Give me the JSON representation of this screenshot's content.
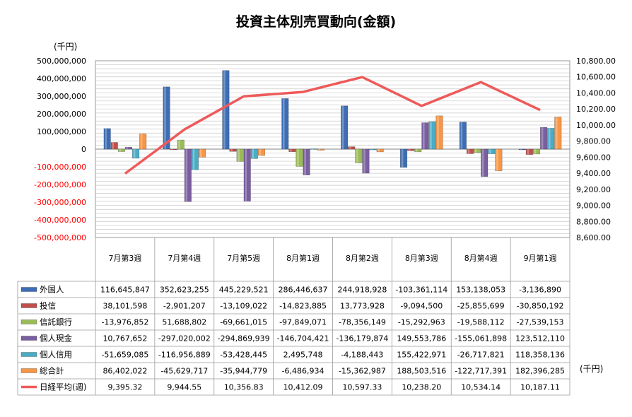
{
  "title": "投資主体別売買動向(金額)",
  "y_unit_left": "(千円)",
  "y_unit_right": "(千円)",
  "colors": {
    "外国人": "#3d6db5",
    "投信": "#c0504d",
    "信託銀行": "#9bbb59",
    "個人現金": "#7a5fa0",
    "個人信用": "#4bacc6",
    "総合計": "#f79646",
    "日経平均(週)": "#ee5a5a",
    "negative_tick": "#ff0000"
  },
  "chart_data": {
    "type": "bar",
    "categories": [
      "7月第3週",
      "7月第4週",
      "7月第5週",
      "8月第1週",
      "8月第2週",
      "8月第3週",
      "8月第4週",
      "9月第1週"
    ],
    "series": [
      {
        "name": "外国人",
        "values": [
          116645847,
          352623255,
          445229521,
          286446637,
          244918928,
          -103361114,
          153138053,
          -3136890
        ]
      },
      {
        "name": "投信",
        "values": [
          38101598,
          -2901207,
          -13109022,
          -14823885,
          13773928,
          -9094500,
          -25855699,
          -30850192
        ]
      },
      {
        "name": "信託銀行",
        "values": [
          -13976852,
          51688802,
          -69661015,
          -97849071,
          -78356149,
          -15292963,
          -19588112,
          -27539153
        ]
      },
      {
        "name": "個人現金",
        "values": [
          10767652,
          -297020002,
          -294869939,
          -146704421,
          -136179874,
          149553786,
          -155061898,
          123512110
        ]
      },
      {
        "name": "個人信用",
        "values": [
          -51659085,
          -116956889,
          -53428445,
          2495748,
          -4188443,
          155422971,
          -26717821,
          118358136
        ]
      },
      {
        "name": "総合計",
        "values": [
          86402022,
          -45629717,
          -35944779,
          -6486934,
          -15362987,
          188503516,
          -122717391,
          182396285
        ]
      }
    ],
    "line_series": {
      "name": "日経平均(週)",
      "axis": "right",
      "values": [
        9395.32,
        9944.55,
        10356.83,
        10412.09,
        10597.33,
        10238.2,
        10534.14,
        10187.11
      ]
    },
    "table_text": [
      [
        "116,645,847",
        "352,623,255",
        "445,229,521",
        "286,446,637",
        "244,918,928",
        "-103,361,114",
        "153,138,053",
        "-3,136,890"
      ],
      [
        "38,101,598",
        "-2,901,207",
        "-13,109,022",
        "-14,823,885",
        "13,773,928",
        "-9,094,500",
        "-25,855,699",
        "-30,850,192"
      ],
      [
        "-13,976,852",
        "51,688,802",
        "-69,661,015",
        "-97,849,071",
        "-78,356,149",
        "-15,292,963",
        "-19,588,112",
        "-27,539,153"
      ],
      [
        "10,767,652",
        "-297,020,002",
        "-294,869,939",
        "-146,704,421",
        "-136,179,874",
        "149,553,786",
        "-155,061,898",
        "123,512,110"
      ],
      [
        "-51,659,085",
        "-116,956,889",
        "-53,428,445",
        "2,495,748",
        "-4,188,443",
        "155,422,971",
        "-26,717,821",
        "118,358,136"
      ],
      [
        "86,402,022",
        "-45,629,717",
        "-35,944,779",
        "-6,486,934",
        "-15,362,987",
        "188,503,516",
        "-122,717,391",
        "182,396,285"
      ],
      [
        "9,395.32",
        "9,944.55",
        "10,356.83",
        "10,412.09",
        "10,597.33",
        "10,238.20",
        "10,534.14",
        "10,187.11"
      ]
    ],
    "ylim_left": [
      -500000000,
      500000000
    ],
    "ylim_right": [
      8600,
      10800
    ],
    "left_ticks": [
      {
        "v": 500000000,
        "t": "500,000,000"
      },
      {
        "v": 400000000,
        "t": "400,000,000"
      },
      {
        "v": 300000000,
        "t": "300,000,000"
      },
      {
        "v": 200000000,
        "t": "200,000,000"
      },
      {
        "v": 100000000,
        "t": "100,000,000"
      },
      {
        "v": 0,
        "t": "0"
      },
      {
        "v": -100000000,
        "t": "-100,000,000"
      },
      {
        "v": -200000000,
        "t": "-200,000,000"
      },
      {
        "v": -300000000,
        "t": "-300,000,000"
      },
      {
        "v": -400000000,
        "t": "-400,000,000"
      },
      {
        "v": -500000000,
        "t": "-500,000,000"
      }
    ],
    "right_ticks": [
      {
        "v": 10800,
        "t": "10,800.00"
      },
      {
        "v": 10600,
        "t": "10,600.00"
      },
      {
        "v": 10400,
        "t": "10,400.00"
      },
      {
        "v": 10200,
        "t": "10,200.00"
      },
      {
        "v": 10000,
        "t": "10,000.00"
      },
      {
        "v": 9800,
        "t": "9,800.00"
      },
      {
        "v": 9600,
        "t": "9,600.00"
      },
      {
        "v": 9400,
        "t": "9,400.00"
      },
      {
        "v": 9200,
        "t": "9,200.00"
      },
      {
        "v": 9000,
        "t": "9,000.00"
      },
      {
        "v": 8800,
        "t": "8,800.00"
      },
      {
        "v": 8600,
        "t": "8,600.00"
      }
    ],
    "grid": true,
    "legend": "data-table-left"
  }
}
